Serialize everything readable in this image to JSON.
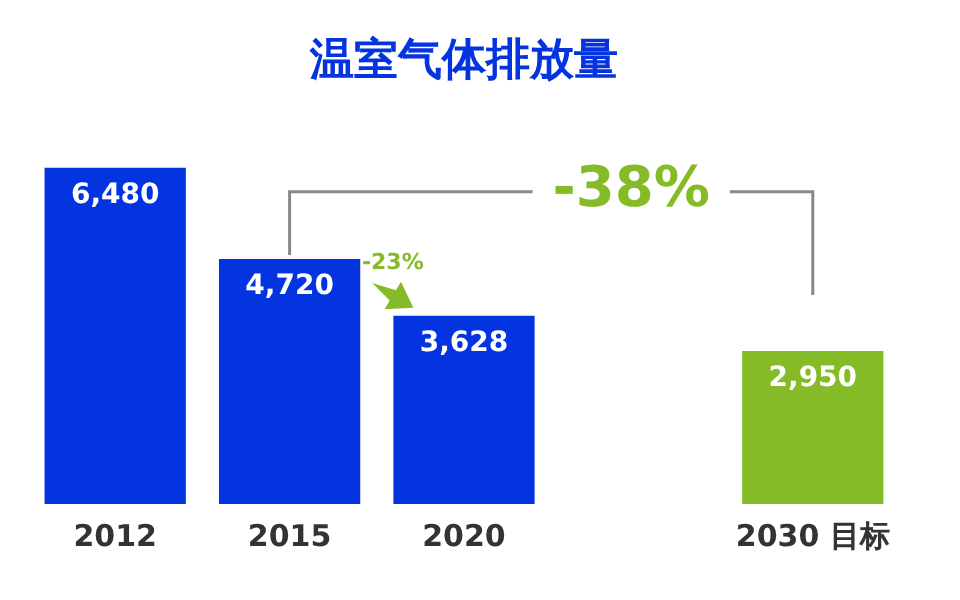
{
  "chart_data": {
    "type": "bar",
    "title": "温室气体排放量",
    "categories": [
      "2012",
      "2015",
      "2020",
      null,
      "2030 目标"
    ],
    "values": [
      6480,
      4720,
      3628,
      null,
      2950
    ],
    "colors": [
      "#0433e0",
      "#0433e0",
      "#0433e0",
      "#0433e0",
      "#84bb26"
    ],
    "value_labels": [
      "6,480",
      "4,720",
      "3,628",
      null,
      "2,950"
    ],
    "grid": false,
    "legend": false,
    "tick_labels": "x",
    "annotations": [
      "-38%",
      "-23%"
    ]
  }
}
